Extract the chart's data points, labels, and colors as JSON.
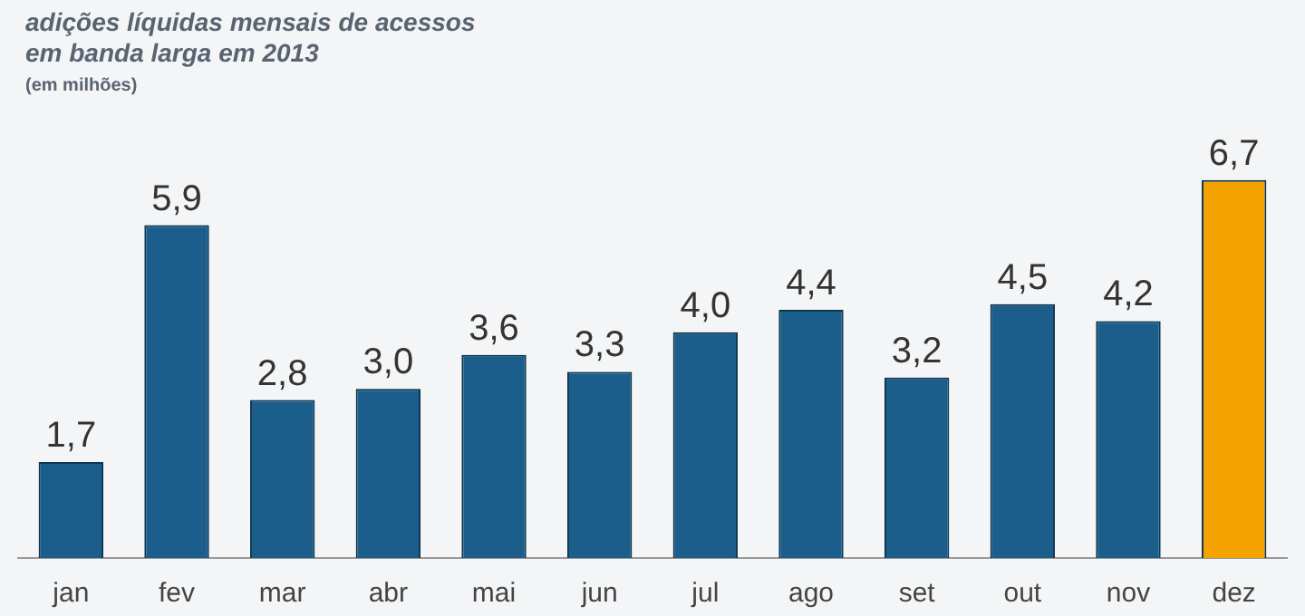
{
  "chart_data": {
    "type": "bar",
    "title": "adições líquidas mensais de acessos\nem banda larga em 2013",
    "subtitle": "(em milhões)",
    "categories": [
      "jan",
      "fev",
      "mar",
      "abr",
      "mai",
      "jun",
      "jul",
      "ago",
      "set",
      "out",
      "nov",
      "dez"
    ],
    "values": [
      1.7,
      5.9,
      2.8,
      3.0,
      3.6,
      3.3,
      4.0,
      4.4,
      3.2,
      4.5,
      4.2,
      6.7
    ],
    "value_labels": [
      "1,7",
      "5,9",
      "2,8",
      "3,0",
      "3,6",
      "3,3",
      "4,0",
      "4,4",
      "3,2",
      "4,5",
      "4,2",
      "6,7"
    ],
    "colors": [
      "#1b5e8c",
      "#1b5e8c",
      "#1b5e8c",
      "#1b5e8c",
      "#1b5e8c",
      "#1b5e8c",
      "#1b5e8c",
      "#1b5e8c",
      "#1b5e8c",
      "#1b5e8c",
      "#1b5e8c",
      "#f5a300"
    ],
    "grid": false,
    "legend": false
  }
}
